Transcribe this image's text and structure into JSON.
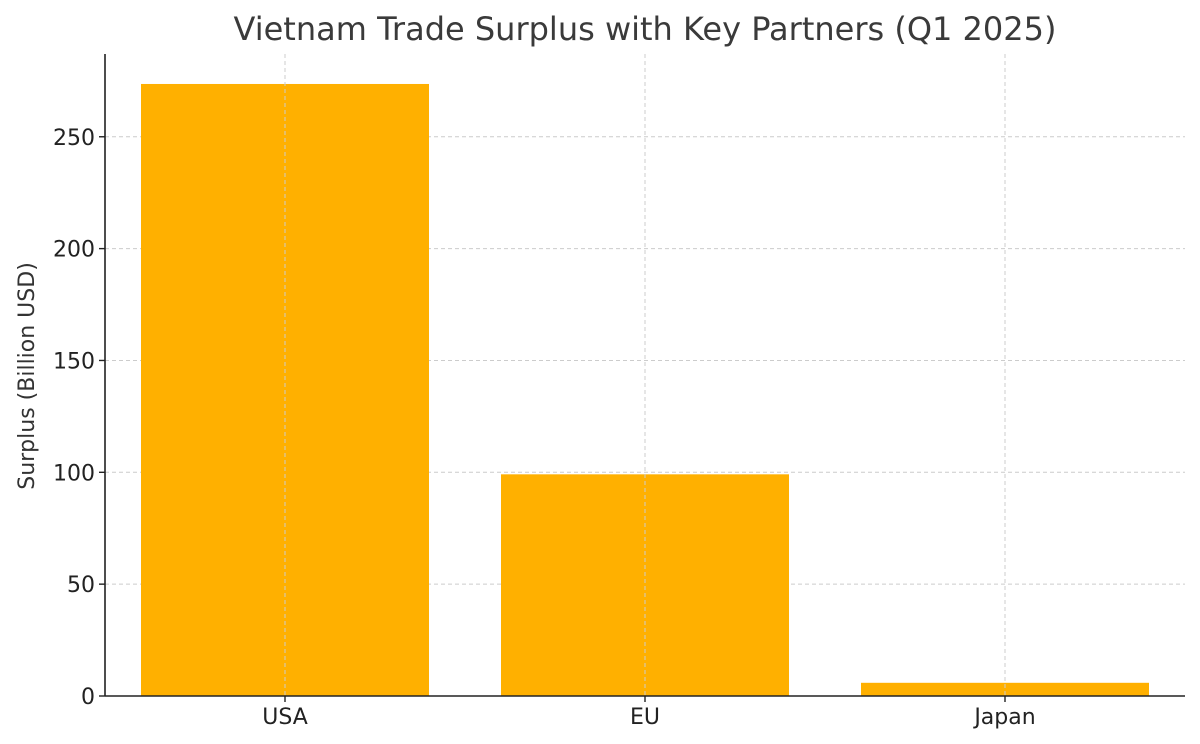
{
  "chart_data": {
    "type": "bar",
    "title": "Vietnam Trade Surplus with Key Partners (Q1 2025)",
    "xlabel": "",
    "ylabel": "Surplus (Billion USD)",
    "categories": [
      "USA",
      "EU",
      "Japan"
    ],
    "values": [
      273.6,
      99.1,
      5.9
    ],
    "ylim": [
      0,
      287
    ],
    "yticks": [
      0,
      50,
      100,
      150,
      200,
      250
    ],
    "grid": true,
    "bar_color": "#FFB000"
  }
}
